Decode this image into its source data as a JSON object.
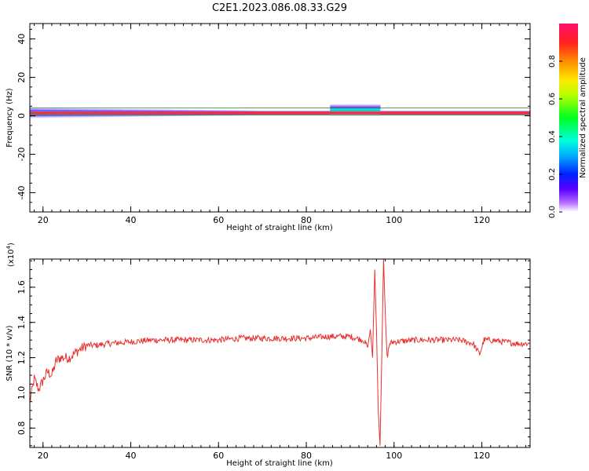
{
  "title": "C2E1.2023.086.08.33.G29",
  "chart_data": [
    {
      "type": "heatmap",
      "xlabel": "Height of straight line (km)",
      "ylabel": "Frequency (Hz)",
      "xlim": [
        17,
        131
      ],
      "ylim": [
        -50,
        48
      ],
      "xticks": [
        20,
        40,
        60,
        80,
        100,
        120
      ],
      "yticks": [
        -40,
        -20,
        0,
        20,
        40
      ],
      "colorbar": {
        "label": "Normalized spectral amplitude",
        "range": [
          0,
          1
        ],
        "ticks": [
          "0.0",
          "0.2",
          "0.4",
          "0.6",
          "0.8"
        ],
        "tick_values": [
          0,
          0.2,
          0.4,
          0.6,
          0.8
        ]
      },
      "ridge": {
        "frequency_hz": 1.5,
        "spread_hz_start": 3,
        "spread_hz_end": 1.5
      },
      "disturbance_km": [
        86,
        97
      ]
    },
    {
      "type": "line",
      "xlabel": "Height of straight line (km)",
      "ylabel": "SNR (10 * v/v)",
      "multiplier": "(x10",
      "multiplier_exp": "4",
      "multiplier_close": ")",
      "xlim": [
        17,
        131
      ],
      "ylim": [
        0.69,
        1.76
      ],
      "xticks": [
        20,
        40,
        60,
        80,
        100,
        120
      ],
      "yticks": [
        "0.8",
        "1.0",
        "1.2",
        "1.4",
        "1.6"
      ],
      "ytick_values": [
        0.8,
        1.0,
        1.2,
        1.4,
        1.6
      ],
      "color": "#e8312f",
      "keypoints": [
        [
          17,
          0.95
        ],
        [
          18,
          1.08
        ],
        [
          19,
          1.02
        ],
        [
          20,
          1.07
        ],
        [
          21,
          1.12
        ],
        [
          22,
          1.1
        ],
        [
          23,
          1.18
        ],
        [
          24,
          1.2
        ],
        [
          26,
          1.2
        ],
        [
          28,
          1.24
        ],
        [
          30,
          1.27
        ],
        [
          32,
          1.27
        ],
        [
          35,
          1.28
        ],
        [
          40,
          1.29
        ],
        [
          45,
          1.3
        ],
        [
          50,
          1.3
        ],
        [
          55,
          1.3
        ],
        [
          60,
          1.3
        ],
        [
          65,
          1.31
        ],
        [
          70,
          1.31
        ],
        [
          75,
          1.31
        ],
        [
          80,
          1.31
        ],
        [
          85,
          1.32
        ],
        [
          90,
          1.32
        ],
        [
          93,
          1.3
        ],
        [
          94,
          1.26
        ],
        [
          94.6,
          1.36
        ],
        [
          95.1,
          1.2
        ],
        [
          95.6,
          1.7
        ],
        [
          96.0,
          1.35
        ],
        [
          96.4,
          0.9
        ],
        [
          96.8,
          0.7
        ],
        [
          97.2,
          1.2
        ],
        [
          97.6,
          1.76
        ],
        [
          98.0,
          1.45
        ],
        [
          98.4,
          1.2
        ],
        [
          99,
          1.28
        ],
        [
          100,
          1.29
        ],
        [
          105,
          1.3
        ],
        [
          110,
          1.3
        ],
        [
          115,
          1.3
        ],
        [
          118,
          1.28
        ],
        [
          119.5,
          1.22
        ],
        [
          120.5,
          1.3
        ],
        [
          122,
          1.3
        ],
        [
          125,
          1.29
        ],
        [
          128,
          1.28
        ],
        [
          131,
          1.28
        ]
      ]
    }
  ]
}
